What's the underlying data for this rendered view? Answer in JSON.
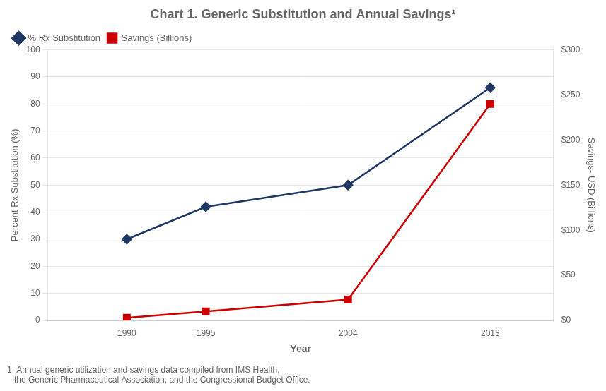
{
  "chart_data": {
    "type": "line",
    "title": "Chart 1. Generic Substitution and Annual Savings¹",
    "xlabel": "Year",
    "ylabel": "Percent Rx Substitution (%)",
    "y2label": "Savings- USD (Billions)",
    "annotations": [
      "1. Annual generic utilization and savings data compiled from IMS Health,",
      "   the Generic Pharmaceutical Association, and the Congressional Budget Office."
    ],
    "x": [
      1990,
      1995,
      2004,
      2013
    ],
    "xlim": [
      1985,
      2017
    ],
    "xticks": [
      1990,
      1995,
      2004,
      2013
    ],
    "ylim": [
      0,
      100
    ],
    "yticks": [
      0,
      10,
      20,
      30,
      40,
      50,
      60,
      70,
      80,
      90,
      100
    ],
    "y2lim": [
      0,
      300
    ],
    "y2ticks": [
      {
        "value": 0,
        "label": "$0"
      },
      {
        "value": 50,
        "label": "$50"
      },
      {
        "value": 100,
        "label": "$100"
      },
      {
        "value": 150,
        "label": "$150"
      },
      {
        "value": 200,
        "label": "$200"
      },
      {
        "value": 250,
        "label": "$250"
      },
      {
        "value": 300,
        "label": "$300"
      }
    ],
    "grid": true,
    "legend": "upper left",
    "series": [
      {
        "name": "% Rx Substitution",
        "color": "#1f3864",
        "marker": "diamond",
        "values": [
          30,
          42,
          50,
          86
        ]
      },
      {
        "name": "Savings (Billions)",
        "color": "#cc0000",
        "marker": "square",
        "axis": "y2",
        "values": [
          3,
          10,
          23,
          240
        ]
      }
    ]
  }
}
